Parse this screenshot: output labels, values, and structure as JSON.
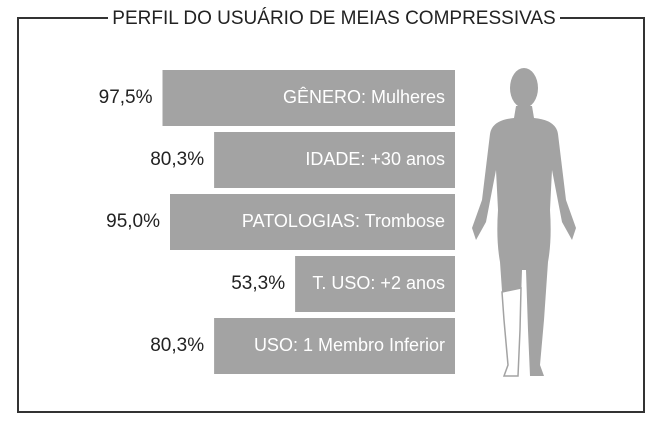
{
  "chart_data": {
    "type": "bar",
    "orientation": "horizontal",
    "title": "PERFIL DO USUÁRIO DE MEIAS COMPRESSIVAS",
    "categories": [
      "GÊNERO: Mulheres",
      "IDADE: +30 anos",
      "PATOLOGIAS: Trombose",
      "T. USO: +2 anos",
      "USO: 1 Membro Inferior"
    ],
    "values": [
      97.5,
      80.3,
      95.0,
      53.3,
      80.3
    ],
    "value_labels": [
      "97,5%",
      "80,3%",
      "95,0%",
      "53,3%",
      "80,3%"
    ],
    "color": "#a3a3a3",
    "xlim": [
      0,
      100
    ]
  }
}
